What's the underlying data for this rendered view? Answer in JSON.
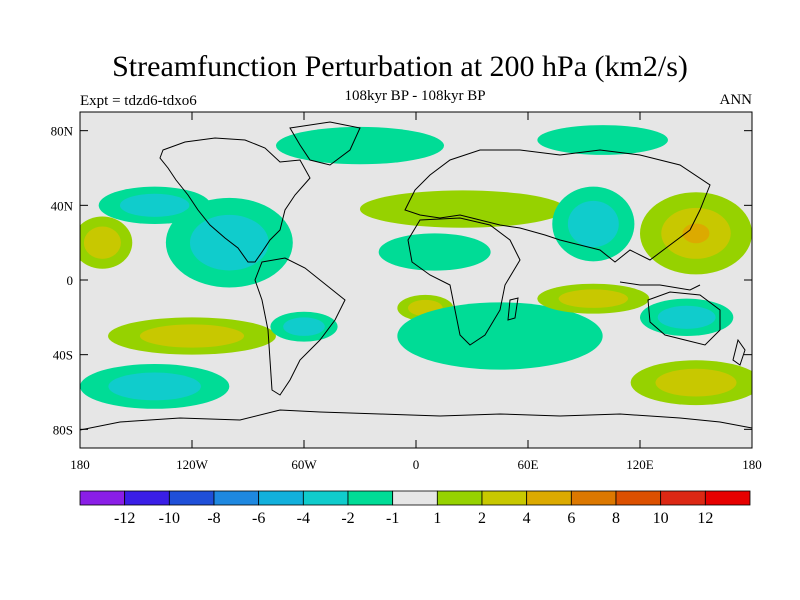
{
  "chart_data": {
    "type": "heatmap",
    "title": "Streamfunction Perturbation at 200 hPa (km2/s)",
    "left_label": "Expt = tdzd6-tdxo6",
    "center_label": "108kyr BP - 108kyr BP",
    "right_label": "ANN",
    "x_ticks": [
      "180",
      "120W",
      "60W",
      "0",
      "60E",
      "120E",
      "180"
    ],
    "x_tick_values": [
      -180,
      -120,
      -60,
      0,
      60,
      120,
      180
    ],
    "y_ticks": [
      "80N",
      "40N",
      "0",
      "40S",
      "80S"
    ],
    "y_tick_values": [
      80,
      40,
      0,
      -40,
      -80
    ],
    "xlim": [
      -180,
      180
    ],
    "ylim": [
      -90,
      90
    ],
    "colorbar": {
      "levels": [
        "-12",
        "-10",
        "-8",
        "-6",
        "-4",
        "-2",
        "-1",
        "1",
        "2",
        "4",
        "6",
        "8",
        "10",
        "12"
      ],
      "colors": [
        "#8a1ee6",
        "#3a1ee6",
        "#1f4fd8",
        "#1e88e0",
        "#12b0dc",
        "#10cccc",
        "#00dc96",
        "#e6e6e6",
        "#96d200",
        "#c8c800",
        "#dcaa00",
        "#dc7800",
        "#dc5000",
        "#dc2814",
        "#e60000"
      ]
    },
    "features": [
      {
        "name": "n-pacific-positive",
        "lon": -168,
        "lat": 20,
        "rx": 16,
        "ry": 14,
        "bands": [
          2,
          4
        ]
      },
      {
        "name": "ne-pacific-negative",
        "lon": -140,
        "lat": 40,
        "rx": 30,
        "ry": 10,
        "bands": [
          -1,
          -2
        ]
      },
      {
        "name": "north-america-negative",
        "lon": -100,
        "lat": 20,
        "rx": 34,
        "ry": 24,
        "bands": [
          -1,
          -2
        ]
      },
      {
        "name": "n-atlantic-negative",
        "lon": -30,
        "lat": 72,
        "rx": 45,
        "ry": 10,
        "bands": [
          -1
        ]
      },
      {
        "name": "europe-positive",
        "lon": 25,
        "lat": 38,
        "rx": 55,
        "ry": 10,
        "bands": [
          2
        ]
      },
      {
        "name": "africa-negative",
        "lon": 10,
        "lat": 15,
        "rx": 30,
        "ry": 10,
        "bands": [
          -1
        ]
      },
      {
        "name": "asia-negative",
        "lon": 95,
        "lat": 30,
        "rx": 22,
        "ry": 20,
        "bands": [
          -1,
          -2
        ]
      },
      {
        "name": "nw-pacific-positive",
        "lon": 150,
        "lat": 25,
        "rx": 30,
        "ry": 22,
        "bands": [
          2,
          4,
          6
        ]
      },
      {
        "name": "arctic-negative",
        "lon": 100,
        "lat": 75,
        "rx": 35,
        "ry": 8,
        "bands": [
          -1
        ]
      },
      {
        "name": "s-pacific-positive",
        "lon": -120,
        "lat": -30,
        "rx": 45,
        "ry": 10,
        "bands": [
          2,
          4
        ]
      },
      {
        "name": "s-ocean-negative",
        "lon": -140,
        "lat": -57,
        "rx": 40,
        "ry": 12,
        "bands": [
          -1,
          -2
        ]
      },
      {
        "name": "s-america-negative",
        "lon": -60,
        "lat": -25,
        "rx": 18,
        "ry": 8,
        "bands": [
          -1,
          -2
        ]
      },
      {
        "name": "s-atlantic-positive",
        "lon": 5,
        "lat": -15,
        "rx": 15,
        "ry": 7,
        "bands": [
          2,
          4
        ]
      },
      {
        "name": "s-indian-negative",
        "lon": 45,
        "lat": -30,
        "rx": 55,
        "ry": 18,
        "bands": [
          -1
        ]
      },
      {
        "name": "indonesia-positive",
        "lon": 95,
        "lat": -10,
        "rx": 30,
        "ry": 8,
        "bands": [
          2,
          4
        ]
      },
      {
        "name": "australia-negative",
        "lon": 145,
        "lat": -20,
        "rx": 25,
        "ry": 10,
        "bands": [
          -1,
          -2
        ]
      },
      {
        "name": "s-pacific-east-positive",
        "lon": 150,
        "lat": -55,
        "rx": 35,
        "ry": 12,
        "bands": [
          2,
          4
        ]
      }
    ]
  }
}
